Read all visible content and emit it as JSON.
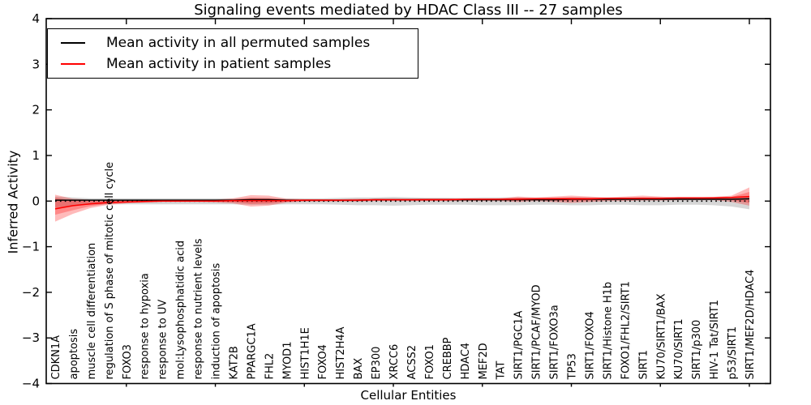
{
  "chart_data": {
    "type": "line",
    "title": "Signaling events mediated by HDAC Class III -- 27 samples",
    "xlabel": "Cellular Entities",
    "ylabel": "Inferred Activity",
    "ylim": [
      -4,
      4
    ],
    "yticks": [
      -4,
      -3,
      -2,
      -1,
      0,
      1,
      2,
      3,
      4
    ],
    "grid": false,
    "legend_position": "upper left",
    "categories": [
      "CDKN1A",
      "apoptosis",
      "muscle cell differentiation",
      "regulation of S phase of mitotic cell cycle",
      "FOXO3",
      "response to hypoxia",
      "response to UV",
      "mol:Lysophosphatidic acid",
      "response to nutrient levels",
      "induction of apoptosis",
      "KAT2B",
      "PPARGC1A",
      "FHL2",
      "MYOD1",
      "HIST1H1E",
      "FOXO4",
      "HIST2H4A",
      "BAX",
      "EP300",
      "XRCC6",
      "ACSS2",
      "FOXO1",
      "CREBBP",
      "HDAC4",
      "MEF2D",
      "TAT",
      "SIRT1/PGC1A",
      "SIRT1/PCAF/MYOD",
      "SIRT1/FOXO3a",
      "TP53",
      "SIRT1/FOXO4",
      "SIRT1/Histone H1b",
      "FOXO1/FHL2/SIRT1",
      "SIRT1",
      "KU70/SIRT1/BAX",
      "KU70/SIRT1",
      "SIRT1/p300",
      "HIV-1 Tat/SIRT1",
      "p53/SIRT1",
      "SIRT1/MEF2D/HDAC4"
    ],
    "series": [
      {
        "name": "Mean activity in all permuted samples",
        "color": "#000000",
        "values": [
          0.02,
          0.02,
          0.02,
          0.02,
          0.02,
          0.02,
          0.02,
          0.02,
          0.02,
          0.02,
          0.02,
          0.03,
          0.03,
          0.02,
          0.02,
          0.02,
          0.02,
          0.02,
          0.03,
          0.03,
          0.03,
          0.03,
          0.03,
          0.03,
          0.03,
          0.03,
          0.03,
          0.03,
          0.03,
          0.04,
          0.04,
          0.04,
          0.04,
          0.04,
          0.04,
          0.04,
          0.04,
          0.04,
          0.04,
          0.05
        ]
      },
      {
        "name": "Mean activity in patient samples",
        "color": "#ff0000",
        "values": [
          -0.17,
          -0.1,
          -0.06,
          -0.03,
          -0.02,
          -0.01,
          0.0,
          0.0,
          0.0,
          0.0,
          0.01,
          0.01,
          0.01,
          0.01,
          0.02,
          0.02,
          0.02,
          0.02,
          0.03,
          0.03,
          0.03,
          0.03,
          0.03,
          0.04,
          0.04,
          0.04,
          0.04,
          0.05,
          0.05,
          0.05,
          0.05,
          0.06,
          0.06,
          0.06,
          0.06,
          0.07,
          0.07,
          0.07,
          0.08,
          0.1
        ]
      }
    ],
    "bands": [
      {
        "name": "permuted-band",
        "color": "rgba(0,0,0,0.16)",
        "upper": [
          0.1,
          0.08,
          0.06,
          0.06,
          0.06,
          0.06,
          0.06,
          0.06,
          0.06,
          0.06,
          0.06,
          0.07,
          0.07,
          0.06,
          0.06,
          0.06,
          0.07,
          0.08,
          0.08,
          0.09,
          0.08,
          0.07,
          0.07,
          0.07,
          0.08,
          0.08,
          0.08,
          0.07,
          0.07,
          0.08,
          0.08,
          0.07,
          0.07,
          0.08,
          0.08,
          0.07,
          0.07,
          0.07,
          0.08,
          0.1
        ],
        "lower": [
          -0.14,
          -0.1,
          -0.08,
          -0.07,
          -0.07,
          -0.07,
          -0.07,
          -0.07,
          -0.07,
          -0.07,
          -0.07,
          -0.08,
          -0.08,
          -0.07,
          -0.07,
          -0.07,
          -0.08,
          -0.09,
          -0.09,
          -0.1,
          -0.09,
          -0.08,
          -0.08,
          -0.08,
          -0.09,
          -0.09,
          -0.09,
          -0.08,
          -0.08,
          -0.09,
          -0.09,
          -0.08,
          -0.08,
          -0.09,
          -0.09,
          -0.08,
          -0.08,
          -0.09,
          -0.12,
          -0.18
        ]
      },
      {
        "name": "patient-band-outer",
        "color": "rgba(255,0,0,0.27)",
        "upper": [
          0.14,
          0.05,
          0.03,
          0.02,
          0.02,
          0.02,
          0.02,
          0.02,
          0.02,
          0.03,
          0.06,
          0.13,
          0.12,
          0.05,
          0.04,
          0.04,
          0.04,
          0.05,
          0.05,
          0.05,
          0.05,
          0.06,
          0.06,
          0.05,
          0.05,
          0.06,
          0.1,
          0.08,
          0.1,
          0.12,
          0.1,
          0.08,
          0.1,
          0.12,
          0.1,
          0.08,
          0.08,
          0.09,
          0.12,
          0.3
        ],
        "lower": [
          -0.45,
          -0.28,
          -0.15,
          -0.08,
          -0.05,
          -0.03,
          -0.02,
          -0.02,
          -0.02,
          -0.03,
          -0.05,
          -0.12,
          -0.1,
          -0.03,
          -0.01,
          -0.01,
          -0.01,
          -0.01,
          0.0,
          0.0,
          0.0,
          0.0,
          0.0,
          0.0,
          0.0,
          0.0,
          -0.02,
          0.0,
          -0.02,
          -0.04,
          -0.02,
          0.0,
          0.0,
          0.01,
          0.01,
          0.02,
          0.02,
          0.02,
          -0.02,
          -0.1
        ]
      },
      {
        "name": "patient-band-inner",
        "color": "rgba(255,0,0,0.27)",
        "upper": [
          0.07,
          0.01,
          0.0,
          0.0,
          0.0,
          0.01,
          0.01,
          0.01,
          0.01,
          0.01,
          0.03,
          0.07,
          0.06,
          0.03,
          0.03,
          0.03,
          0.03,
          0.03,
          0.04,
          0.04,
          0.04,
          0.04,
          0.04,
          0.04,
          0.04,
          0.05,
          0.07,
          0.06,
          0.07,
          0.08,
          0.07,
          0.06,
          0.07,
          0.08,
          0.07,
          0.06,
          0.06,
          0.06,
          0.09,
          0.2
        ],
        "lower": [
          -0.3,
          -0.2,
          -0.11,
          -0.06,
          -0.03,
          -0.02,
          -0.01,
          -0.01,
          -0.01,
          -0.01,
          -0.02,
          -0.06,
          -0.05,
          -0.01,
          0.0,
          0.0,
          0.0,
          0.0,
          0.01,
          0.01,
          0.01,
          0.01,
          0.01,
          0.02,
          0.02,
          0.02,
          0.01,
          0.02,
          0.01,
          0.0,
          0.01,
          0.02,
          0.03,
          0.03,
          0.03,
          0.04,
          0.04,
          0.04,
          0.02,
          -0.04
        ]
      }
    ],
    "zero_line": {
      "value": 0,
      "style": "dotted",
      "color": "#000000"
    },
    "x_major_tick_indices": [
      4,
      9,
      14,
      19,
      24,
      29,
      34,
      39
    ]
  },
  "legend": {
    "items": [
      {
        "label": "Mean activity in all permuted samples",
        "color": "#000000"
      },
      {
        "label": "Mean activity in patient samples",
        "color": "#ff0000"
      }
    ]
  }
}
